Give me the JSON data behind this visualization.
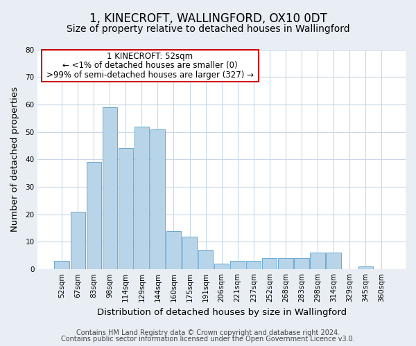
{
  "title": "1, KINECROFT, WALLINGFORD, OX10 0DT",
  "subtitle": "Size of property relative to detached houses in Wallingford",
  "xlabel": "Distribution of detached houses by size in Wallingford",
  "ylabel": "Number of detached properties",
  "bar_color": "#b8d4e8",
  "bar_edge_color": "#6aaad4",
  "background_color": "#e8eef4",
  "plot_bg_color": "#ffffff",
  "grid_color": "#c8d8e8",
  "categories": [
    "52sqm",
    "67sqm",
    "83sqm",
    "98sqm",
    "114sqm",
    "129sqm",
    "144sqm",
    "160sqm",
    "175sqm",
    "191sqm",
    "206sqm",
    "221sqm",
    "237sqm",
    "252sqm",
    "268sqm",
    "283sqm",
    "298sqm",
    "314sqm",
    "329sqm",
    "345sqm",
    "360sqm"
  ],
  "values": [
    3,
    21,
    39,
    59,
    44,
    52,
    51,
    14,
    12,
    7,
    2,
    3,
    3,
    4,
    4,
    4,
    6,
    6,
    0,
    1,
    0
  ],
  "highlight_index": 0,
  "annotation_line1": "1 KINECROFT: 52sqm",
  "annotation_line2": "← <1% of detached houses are smaller (0)",
  "annotation_line3": ">99% of semi-detached houses are larger (327) →",
  "footer_line1": "Contains HM Land Registry data © Crown copyright and database right 2024.",
  "footer_line2": "Contains public sector information licensed under the Open Government Licence v3.0.",
  "ylim": [
    0,
    80
  ],
  "yticks": [
    0,
    10,
    20,
    30,
    40,
    50,
    60,
    70,
    80
  ],
  "title_fontsize": 12,
  "subtitle_fontsize": 10,
  "axis_label_fontsize": 9.5,
  "tick_fontsize": 7.5,
  "annotation_fontsize": 8.5,
  "footer_fontsize": 7
}
